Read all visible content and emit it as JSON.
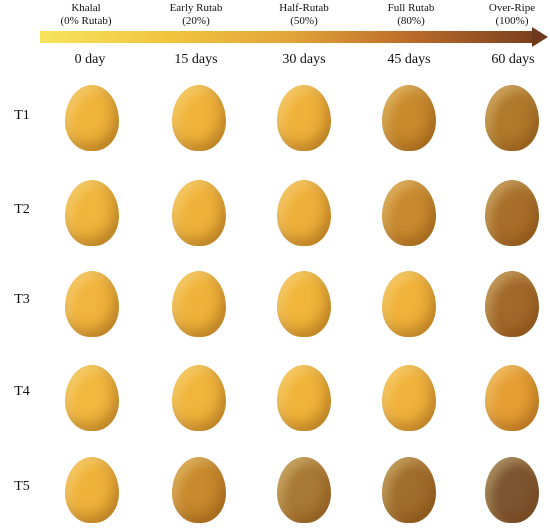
{
  "stages": [
    {
      "name": "Khalal",
      "pct": "(0% Rutab)"
    },
    {
      "name": "Early Rutab",
      "pct": "(20%)"
    },
    {
      "name": "Half-Rutab",
      "pct": "(50%)"
    },
    {
      "name": "Full Rutab",
      "pct": "(80%)"
    },
    {
      "name": "Over-Ripe",
      "pct": "(100%)"
    }
  ],
  "days": [
    "0 day",
    "15 days",
    "30 days",
    "45 days",
    "60 days"
  ],
  "rows": [
    "T1",
    "T2",
    "T3",
    "T4",
    "T5"
  ],
  "colors": {
    "fruits": [
      [
        "#f0b43a",
        "#f1b43a",
        "#f0b23a",
        "#c98a2c",
        "#b07a2c"
      ],
      [
        "#f0b53b",
        "#f0b33a",
        "#efb03a",
        "#c98a2e",
        "#a86f2a"
      ],
      [
        "#f1b43c",
        "#f0b33a",
        "#f1b53a",
        "#f1b33a",
        "#a2692a"
      ],
      [
        "#f2b83e",
        "#f1b53b",
        "#f1b43a",
        "#f1b33c",
        "#e69e34"
      ],
      [
        "#f0b33a",
        "#c88a2c",
        "#a97a35",
        "#a06e2c",
        "#7c5532"
      ]
    ]
  }
}
